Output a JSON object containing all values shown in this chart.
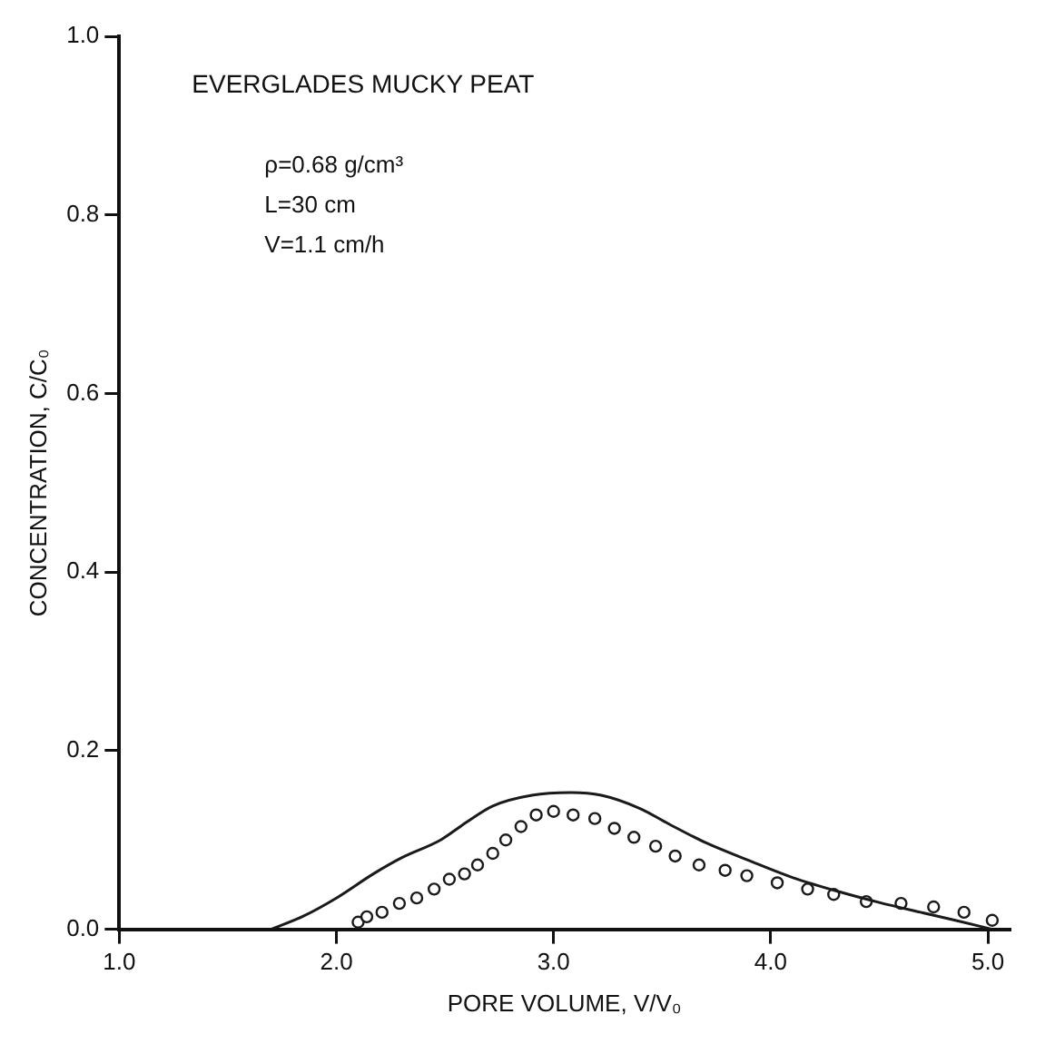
{
  "chart_data": {
    "type": "scatter",
    "title": "EVERGLADES MUCKY PEAT",
    "annotations": [
      "ρ=0.68 g/cm³",
      "L=30 cm",
      "V=1.1 cm/h"
    ],
    "xlabel": "PORE VOLUME, V/V₀",
    "ylabel": "CONCENTRATION, C/C₀",
    "xlim": [
      1,
      5.1
    ],
    "xticks": [
      {
        "value": 1,
        "label": "1.0"
      },
      {
        "value": 2,
        "label": "2.0"
      },
      {
        "value": 3,
        "label": "3.0"
      },
      {
        "value": 4,
        "label": "4.0"
      },
      {
        "value": 5,
        "label": "5.0"
      }
    ],
    "ylim": [
      0,
      1
    ],
    "yticks": [
      {
        "value": 0,
        "label": "0.0"
      },
      {
        "value": 0.2,
        "label": "0.2"
      },
      {
        "value": 0.4,
        "label": "0.4"
      },
      {
        "value": 0.6,
        "label": "0.6"
      },
      {
        "value": 0.8,
        "label": "0.8"
      },
      {
        "value": 1,
        "label": "1.0"
      }
    ],
    "grid": false,
    "legend": false,
    "marker": "circle",
    "line_style": "solid",
    "series": [
      {
        "type": "line",
        "marker": "none",
        "color": "#1a1a1a",
        "x": [
          1.7,
          1.85,
          2.0,
          2.17,
          2.3,
          2.48,
          2.6,
          2.72,
          2.9,
          3.08,
          3.22,
          3.4,
          3.53,
          3.7,
          3.91,
          4.1,
          4.33,
          4.5,
          4.69,
          4.85,
          5.02
        ],
        "values": [
          0,
          0.015,
          0.035,
          0.062,
          0.08,
          0.1,
          0.12,
          0.138,
          0.15,
          0.153,
          0.15,
          0.135,
          0.118,
          0.097,
          0.076,
          0.058,
          0.041,
          0.03,
          0.019,
          0.01,
          0
        ]
      },
      {
        "color": "#1a1a1a",
        "x": [
          2.1,
          2.14,
          2.21,
          2.29,
          2.37,
          2.45,
          2.52,
          2.59,
          2.65,
          2.72,
          2.78,
          2.85,
          2.92,
          3.0,
          3.09,
          3.19,
          3.28,
          3.37,
          3.47,
          3.56,
          3.67,
          3.79,
          3.89,
          4.03,
          4.17,
          4.29,
          4.44,
          4.6,
          4.75,
          4.89,
          5.02
        ],
        "values": [
          0.008,
          0.014,
          0.019,
          0.029,
          0.035,
          0.045,
          0.056,
          0.062,
          0.072,
          0.085,
          0.1,
          0.115,
          0.128,
          0.132,
          0.128,
          0.124,
          0.113,
          0.103,
          0.093,
          0.082,
          0.072,
          0.066,
          0.06,
          0.052,
          0.045,
          0.039,
          0.031,
          0.029,
          0.025,
          0.019,
          0.01
        ]
      }
    ]
  }
}
